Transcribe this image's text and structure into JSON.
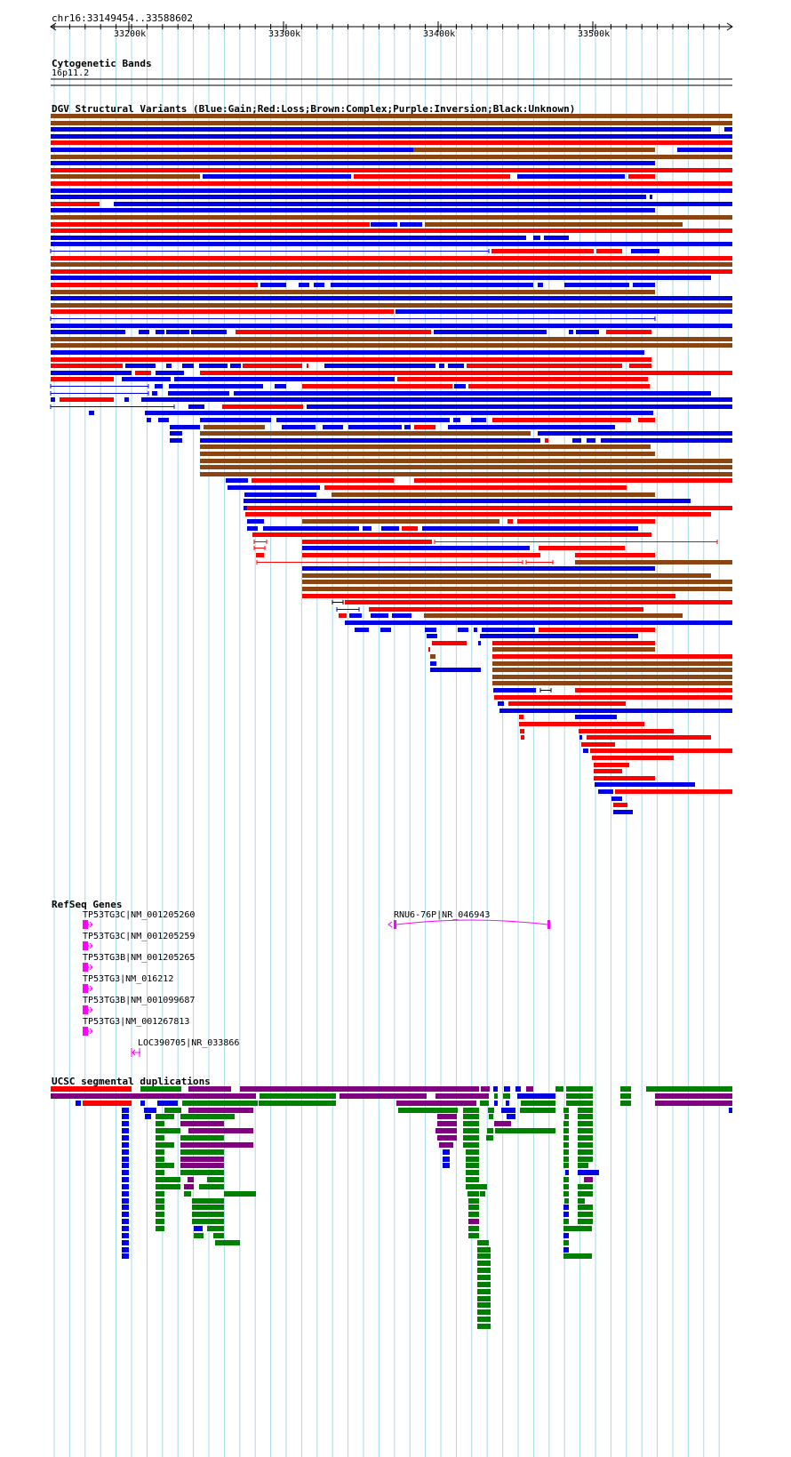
{
  "locus": {
    "label": "chr16:33149454..33588602"
  },
  "ruler": {
    "ticks": [
      "33200k",
      "33300k",
      "33400k",
      "33500k"
    ]
  },
  "tracks": {
    "cytoband": {
      "title": "Cytogenetic Bands",
      "band_label": "16p11.2"
    },
    "dgv": {
      "title": "DGV Structural Variants (Blue:Gain;Red:Loss;Brown:Complex;Purple:Inversion;Black:Unknown)"
    },
    "refseq": {
      "title": "RefSeq Genes",
      "genes": [
        {
          "label": "TP53TG3C|NM_001205260",
          "strand": "+"
        },
        {
          "label": "TP53TG3C|NM_001205259",
          "strand": "+"
        },
        {
          "label": "TP53TG3B|NM_001205265",
          "strand": "+"
        },
        {
          "label": "TP53TG3|NM_016212",
          "strand": "+"
        },
        {
          "label": "TP53TG3B|NM_001099687",
          "strand": "+"
        },
        {
          "label": "TP53TG3|NM_001267813",
          "strand": "+"
        },
        {
          "label": "LOC390705|NR_033866",
          "strand": "-"
        },
        {
          "label": "RNU6-76P|NR_046943",
          "strand": "-"
        }
      ]
    },
    "segdup": {
      "title": "UCSC segmental duplications"
    }
  },
  "colors": {
    "gain": "#0000e6",
    "loss": "#ff0000",
    "complex": "#8b4513",
    "inversion": "#800080",
    "segdup_green": "#008000",
    "gene": "#ff00ff",
    "grid": "#a8d8ea",
    "axis": "#000000"
  }
}
